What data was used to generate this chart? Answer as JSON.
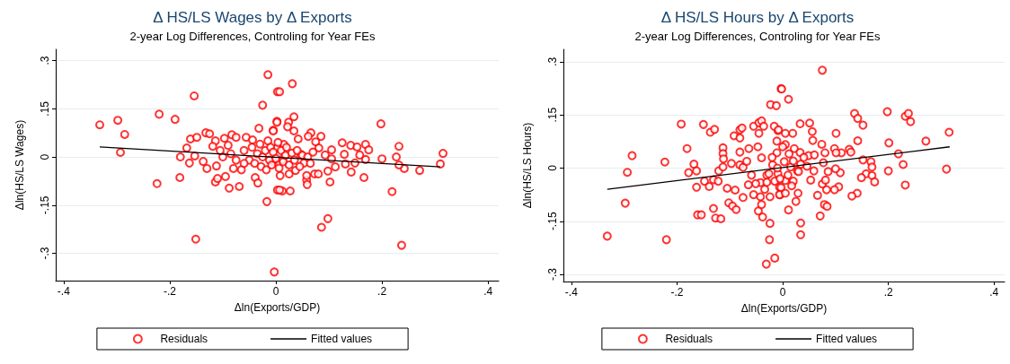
{
  "chart_data": [
    {
      "type": "scatter",
      "title": "Δ HS/LS Wages by Δ Exports",
      "subtitle": "2-year Log Differences, Controling for Year FEs",
      "xlabel": "Δln(Exports/GDP)",
      "ylabel": "Δln(HS/LS Wages)",
      "xlim": [
        -0.415,
        0.42
      ],
      "ylim": [
        -0.385,
        0.335
      ],
      "xticks": [
        {
          "value": -0.4,
          "label": "-.4"
        },
        {
          "value": -0.2,
          "label": "-.2"
        },
        0,
        {
          "value": 0.2,
          "label": ".2"
        },
        {
          "value": 0.4,
          "label": ".4"
        }
      ],
      "yticks": [
        {
          "value": -0.3,
          "label": "-.3"
        },
        {
          "value": -0.15,
          "label": "-.15"
        },
        0,
        {
          "value": 0.15,
          "label": ".15"
        },
        {
          "value": 0.3,
          "label": ".3"
        }
      ],
      "grid": "y",
      "legend": "bottom",
      "series": [
        {
          "name": "Residuals",
          "color": "#ff0000",
          "marker": "circle",
          "x": [
            -0.332,
            -0.298,
            -0.285,
            -0.293,
            -0.22,
            -0.224,
            -0.19,
            -0.154,
            -0.151,
            -0.181,
            -0.18,
            -0.168,
            -0.161,
            -0.149,
            -0.163,
            -0.153,
            -0.137,
            -0.13,
            -0.132,
            -0.125,
            -0.114,
            -0.119,
            -0.112,
            -0.114,
            -0.11,
            -0.097,
            -0.09,
            -0.095,
            -0.088,
            -0.083,
            -0.075,
            -0.069,
            -0.08,
            -0.056,
            -0.044,
            -0.032,
            -0.025,
            -0.015,
            -0.005,
            0.002,
            -0.017,
            -0.003,
            0.003,
            -0.039,
            -0.034,
            0.003,
            0.031,
            0.007,
            0.002,
            0.024,
            0.034,
            0.022,
            0.034,
            -0.005,
            0.198,
            0.066,
            0.061,
            0.085,
            0.042,
            0.125,
            0.141,
            0.153,
            0.169,
            0.175,
            0.105,
            0.232,
            0.227,
            0.315,
            0.31,
            0.271,
            0.242,
            0.232,
            0.2,
            0.169,
            0.149,
            0.131,
            0.129,
            0.158,
            0.142,
            0.166,
            0.219,
            0.102,
            0.112,
            0.098,
            0.073,
            0.08,
            0.058,
            0.059,
            0.058,
            0.086,
            0.098,
            0.237,
            0.027,
            0.012,
            0.007,
            0.008,
            0.025,
            0.037,
            0.093,
            0.105,
            0.047,
            0.053,
            0.075,
            0.081,
            0.015,
            0.002,
            0.012,
            -0.005,
            -0.06,
            -0.05,
            -0.045,
            -0.04,
            -0.035,
            -0.03,
            -0.028,
            -0.025,
            -0.02,
            -0.018,
            -0.015,
            -0.012,
            -0.01,
            -0.008,
            -0.005,
            0.0,
            0.004,
            0.006,
            0.01,
            0.014,
            0.018,
            0.02,
            0.025,
            0.03,
            0.035,
            0.04,
            0.045,
            0.05,
            -0.075,
            -0.085,
            -0.065,
            -0.1,
            -0.105,
            -0.06,
            0.06,
            0.07,
            0.065
          ],
          "values": [
            0.1,
            0.114,
            0.07,
            0.014,
            0.133,
            -0.083,
            0.117,
            0.19,
            -0.256,
            -0.064,
            0,
            0.028,
            0.056,
            0.061,
            -0.019,
            0.003,
            -0.014,
            -0.036,
            0.075,
            0.072,
            0.05,
            0.033,
            -0.028,
            -0.078,
            -0.067,
            0.058,
            0.036,
            -0.061,
            -0.097,
            0.069,
            0.061,
            -0.092,
            -0.036,
            0.061,
            0.053,
            0.089,
            0.161,
            0.256,
            0.083,
            0.111,
            -0.139,
            -0.358,
            -0.103,
            -0.064,
            -0.081,
            0.203,
            0.228,
            0.203,
            0.108,
            0.108,
            0.125,
            0.094,
            0.081,
            0.081,
            0.103,
            0.075,
            0.064,
            0.064,
            0.056,
            0.044,
            0.036,
            0.031,
            0.039,
            0.022,
            0.022,
            0.033,
            0,
            0.011,
            -0.022,
            -0.042,
            -0.036,
            -0.025,
            -0.006,
            -0.008,
            -0.019,
            -0.022,
            0.008,
            0.006,
            -0.047,
            -0.064,
            -0.108,
            -0.078,
            -0.031,
            -0.044,
            -0.053,
            -0.053,
            -0.072,
            -0.086,
            -0.058,
            -0.219,
            -0.192,
            -0.275,
            -0.106,
            -0.106,
            -0.103,
            -0.058,
            -0.053,
            -0.042,
            0.006,
            -0.006,
            0.008,
            -0.019,
            0.047,
            0.028,
            0.039,
            0.028,
            -0.008,
            -0.014,
            0.02,
            -0.01,
            0.03,
            -0.02,
            0.01,
            0.04,
            -0.03,
            0,
            0.02,
            -0.04,
            0.05,
            -0.01,
            0.03,
            -0.025,
            0.015,
            -0.005,
            0.045,
            -0.035,
            0.02,
            -0.015,
            0.005,
            0.03,
            -0.025,
            0.012,
            -0.01,
            0.02,
            -0.03,
            0.005,
            -0.01,
            0.01,
            -0.04,
            0,
            0.02,
            -0.02,
            0,
            0.015,
            -0.02
          ]
        },
        {
          "name": "Fitted values",
          "type": "line",
          "marker": "none",
          "color": "#000000",
          "x": [
            -0.332,
            0.31
          ],
          "values": [
            0.031,
            -0.031
          ]
        }
      ]
    },
    {
      "type": "scatter",
      "title": "Δ HS/LS Hours by Δ Exports",
      "subtitle": "2-year Log Differences, Controling for Year FEs",
      "xlabel": "Δln(Exports/GDP)",
      "ylabel": "Δln(HS/LS Hours)",
      "xlim": [
        -0.415,
        0.42
      ],
      "ylim": [
        -0.32,
        0.335
      ],
      "xticks": [
        {
          "value": -0.4,
          "label": "-.4"
        },
        {
          "value": -0.2,
          "label": "-.2"
        },
        0,
        {
          "value": 0.2,
          "label": ".2"
        },
        {
          "value": 0.4,
          "label": ".4"
        }
      ],
      "yticks": [
        {
          "value": -0.3,
          "label": "-.3"
        },
        {
          "value": -0.15,
          "label": "-.15"
        },
        0,
        {
          "value": 0.15,
          "label": ".15"
        },
        {
          "value": 0.3,
          "label": ".3"
        }
      ],
      "grid": "y",
      "legend": "bottom",
      "series": [
        {
          "name": "Residuals",
          "color": "#ff0000",
          "marker": "circle",
          "x": [
            -0.332,
            -0.298,
            -0.294,
            -0.285,
            -0.223,
            -0.22,
            -0.192,
            -0.181,
            -0.178,
            -0.168,
            -0.163,
            -0.163,
            -0.161,
            -0.154,
            -0.15,
            -0.137,
            -0.129,
            -0.148,
            -0.139,
            -0.131,
            -0.131,
            -0.127,
            -0.117,
            -0.122,
            -0.121,
            -0.113,
            -0.113,
            -0.112,
            -0.113,
            -0.105,
            -0.102,
            -0.095,
            -0.088,
            -0.097,
            -0.09,
            -0.092,
            -0.081,
            -0.081,
            -0.077,
            -0.081,
            -0.081,
            -0.075,
            -0.075,
            -0.068,
            -0.064,
            -0.055,
            -0.045,
            -0.04,
            -0.045,
            -0.036,
            -0.047,
            -0.04,
            -0.055,
            -0.042,
            -0.046,
            -0.038,
            -0.04,
            -0.024,
            -0.025,
            -0.015,
            -0.031,
            -0.023,
            -0.012,
            -0.003,
            -0.024,
            -0.034,
            -0.042,
            -0.051,
            -0.065,
            -0.059,
            -0.03,
            -0.019,
            -0.011,
            -0.011,
            -0.009,
            -0.016,
            -0.026,
            -0.015,
            -0.006,
            -0.005,
            0.075,
            -0.002,
            0.011,
            0.136,
            0.142,
            0.152,
            0.198,
            0.232,
            0.238,
            0.242,
            0.315,
            0.271,
            0.201,
            0.219,
            0.228,
            0.2,
            0.232,
            0.31,
            0.142,
            0.126,
            0.129,
            0.152,
            0.167,
            0.169,
            0.158,
            0.149,
            0.169,
            0.174,
            0.141,
            0.131,
            0.101,
            0.111,
            0.098,
            0.101,
            0.109,
            0.1,
            0.106,
            0.098,
            0.086,
            0.083,
            0.075,
            0.081,
            0.079,
            0.084,
            0.071,
            0.066,
            0.053,
            0.059,
            0.077,
            0.08,
            0.074,
            0.057,
            0.056,
            0.051,
            0.033,
            0.019,
            0.005,
            -0.008,
            0.005,
            0.022,
            0.033,
            0.049,
            0.06,
            0.003,
            0.015,
            0.028,
            0.034,
            0.046,
            -0.009,
            0.005,
            0.02,
            0.017,
            -0.003,
            -0.006,
            0.005,
            0.029,
            0.025,
            0.011,
            0.034,
            0.034,
            -0.02,
            -0.01,
            0.0,
            0.01,
            0.02,
            -0.03,
            0.04,
            0.012,
            -0.005,
            0.03
          ],
          "values": [
            -0.192,
            -0.099,
            -0.012,
            0.035,
            0.017,
            -0.202,
            0.124,
            0.055,
            -0.013,
            0.011,
            -0.008,
            -0.054,
            -0.132,
            -0.132,
            0.123,
            0.101,
            0.109,
            -0.037,
            -0.052,
            -0.033,
            -0.114,
            -0.141,
            -0.143,
            -0.037,
            -0.008,
            0.057,
            0.041,
            0.026,
            0.003,
            -0.057,
            -0.098,
            -0.107,
            -0.117,
            0.013,
            -0.062,
            0.091,
            0.085,
            0.108,
            0.113,
            0.045,
            0.009,
            0.002,
            -0.083,
            0.019,
            0.055,
            0.118,
            0.128,
            0.133,
            0.098,
            0.118,
            0.06,
            0.029,
            -0.075,
            -0.081,
            -0.121,
            -0.138,
            -0.103,
            -0.156,
            -0.202,
            -0.254,
            -0.271,
            0.179,
            0.176,
            0.224,
            -0.081,
            -0.06,
            -0.041,
            -0.044,
            -0.047,
            -0.02,
            -0.02,
            0.009,
            0.043,
            0.076,
            0.106,
            0.118,
            -0.016,
            -0.037,
            -0.054,
            -0.075,
            0.276,
            0.223,
            0.194,
            0.154,
            0.14,
            0.121,
            0.159,
            0.146,
            0.154,
            0.131,
            0.101,
            0.076,
            0.071,
            0.04,
            0.01,
            -0.008,
            -0.048,
            -0.003,
            0.077,
            0.053,
            0.045,
            0.023,
            0.018,
            0.003,
            -0.016,
            -0.027,
            -0.021,
            -0.039,
            -0.071,
            -0.079,
            0.098,
            0.043,
            0.055,
            0.043,
            -0.013,
            -0.002,
            -0.053,
            -0.061,
            -0.01,
            -0.061,
            -0.045,
            -0.034,
            -0.103,
            -0.108,
            -0.135,
            -0.077,
            -0.034,
            -0.008,
            0.015,
            0.043,
            0.067,
            0.078,
            0.103,
            0.127,
            0.125,
            0.098,
            0.098,
            0.108,
            0.066,
            0.055,
            0.044,
            0.035,
            0.037,
            0.018,
            0.003,
            -0.008,
            0.011,
            0.005,
            -0.016,
            -0.035,
            -0.037,
            -0.05,
            -0.055,
            -0.075,
            -0.071,
            -0.071,
            -0.094,
            -0.118,
            -0.155,
            -0.188,
            0.03,
            0,
            0.06,
            -0.02,
            0.02,
            -0.04,
            0.03,
            0.04,
            -0.03,
            -0.01
          ]
        },
        {
          "name": "Fitted values",
          "type": "line",
          "marker": "none",
          "color": "#000000",
          "x": [
            -0.332,
            0.316
          ],
          "values": [
            -0.06,
            0.06
          ]
        }
      ]
    }
  ]
}
